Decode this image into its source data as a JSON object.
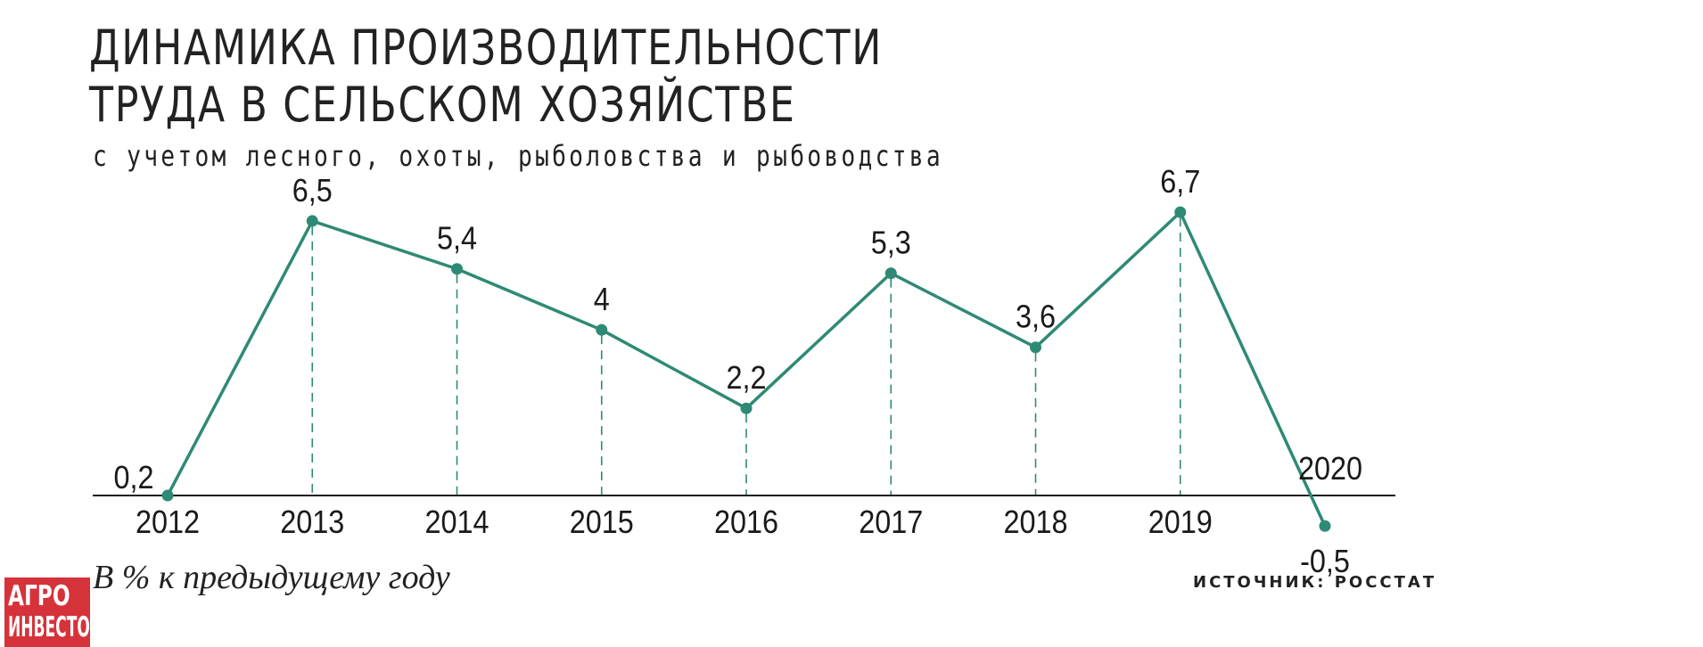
{
  "header": {
    "title_line1": "ДИНАМИКА ПРОИЗВОДИТЕЛЬНОСТИ",
    "title_line2": "ТРУДА В СЕЛЬСКОМ ХОЗЯЙСТВЕ",
    "subtitle": "с учетом лесного, охоты, рыболовства и рыбоводства"
  },
  "footer": {
    "unit_note": "В % к предыдущему году",
    "source": "ИСТОЧНИК: РОССТАТ"
  },
  "logo": {
    "line1": "АГРО",
    "line2": "ИНВЕСТОР"
  },
  "colors": {
    "line": "#2e8a74",
    "axis": "#1a1a1a",
    "logo_bg": "#d6323a"
  },
  "chart_data": {
    "type": "line",
    "x": [
      "2012",
      "2013",
      "2014",
      "2015",
      "2016",
      "2017",
      "2018",
      "2019",
      "2020"
    ],
    "series": [
      {
        "values": [
          0.2,
          6.5,
          5.4,
          4,
          2.2,
          5.3,
          3.6,
          6.7,
          -0.5
        ]
      }
    ],
    "data_labels": [
      "0,2",
      "6,5",
      "5,4",
      "4",
      "2,2",
      "5,3",
      "3,6",
      "6,7",
      "-0,5"
    ],
    "grid": false,
    "drop_lines": true
  }
}
